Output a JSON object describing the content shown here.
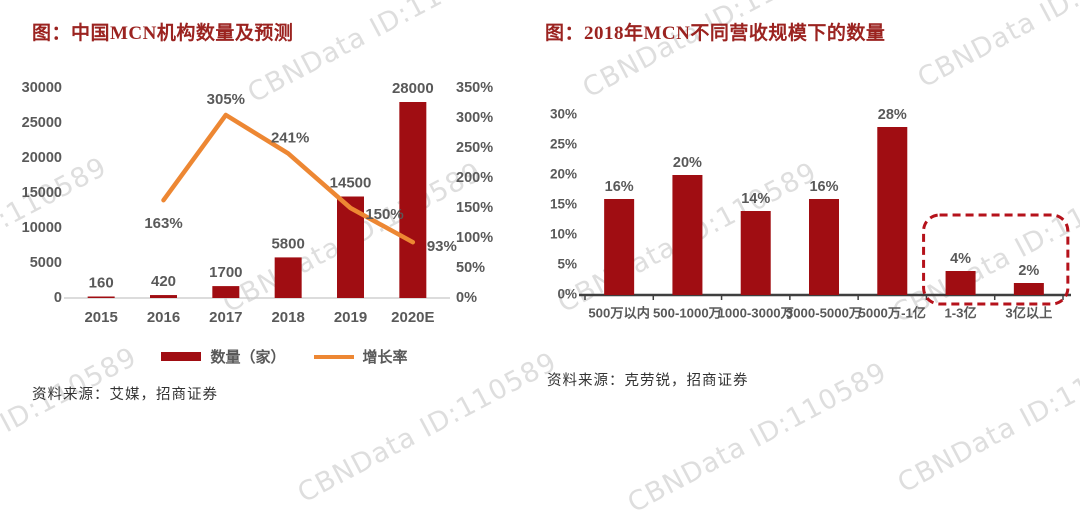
{
  "watermark": {
    "text": "CBNData ID:110589"
  },
  "colors": {
    "title_red": "#9b2320",
    "bar_red": "#a00d12",
    "line_orange": "#ed8733",
    "label_gray": "#595959",
    "axis_light": "#c8c8c8",
    "axis_dark": "#3f3f3f",
    "highlight_box_red": "#b5121b"
  },
  "left_panel": {
    "source": "资料来源：艾媒，招商证券"
  },
  "right_panel": {
    "source": "资料来源：克劳锐，招商证券"
  },
  "chart_data": [
    {
      "type": "bar",
      "title": "图：中国MCN机构数量及预测",
      "categories": [
        "2015",
        "2016",
        "2017",
        "2018",
        "2019",
        "2020E"
      ],
      "series": [
        {
          "name": "数量（家）",
          "type": "bar",
          "axis": "left",
          "values": [
            160,
            420,
            1700,
            5800,
            14500,
            28000
          ]
        },
        {
          "name": "增长率",
          "type": "line",
          "axis": "right",
          "unit": "%",
          "values": [
            null,
            163,
            305,
            241,
            150,
            93
          ]
        }
      ],
      "left_axis": {
        "min": 0,
        "max": 30000,
        "step": 5000
      },
      "right_axis": {
        "min": 0,
        "max": 350,
        "step": 50,
        "unit": "%"
      },
      "grid": false,
      "legend_position": "bottom"
    },
    {
      "type": "bar",
      "title": "图：2018年MCN不同营收规模下的数量",
      "categories": [
        "500万以内",
        "500-1000万",
        "1000-3000万",
        "3000-5000万",
        "5000万-1亿",
        "1-3亿",
        "3亿以上"
      ],
      "values": [
        16,
        20,
        14,
        16,
        28,
        4,
        2
      ],
      "unit": "%",
      "ylabel": "",
      "ylim": [
        0,
        30
      ],
      "y_step": 5,
      "grid": false,
      "highlight_box_categories": [
        "1-3亿",
        "3亿以上"
      ]
    }
  ]
}
